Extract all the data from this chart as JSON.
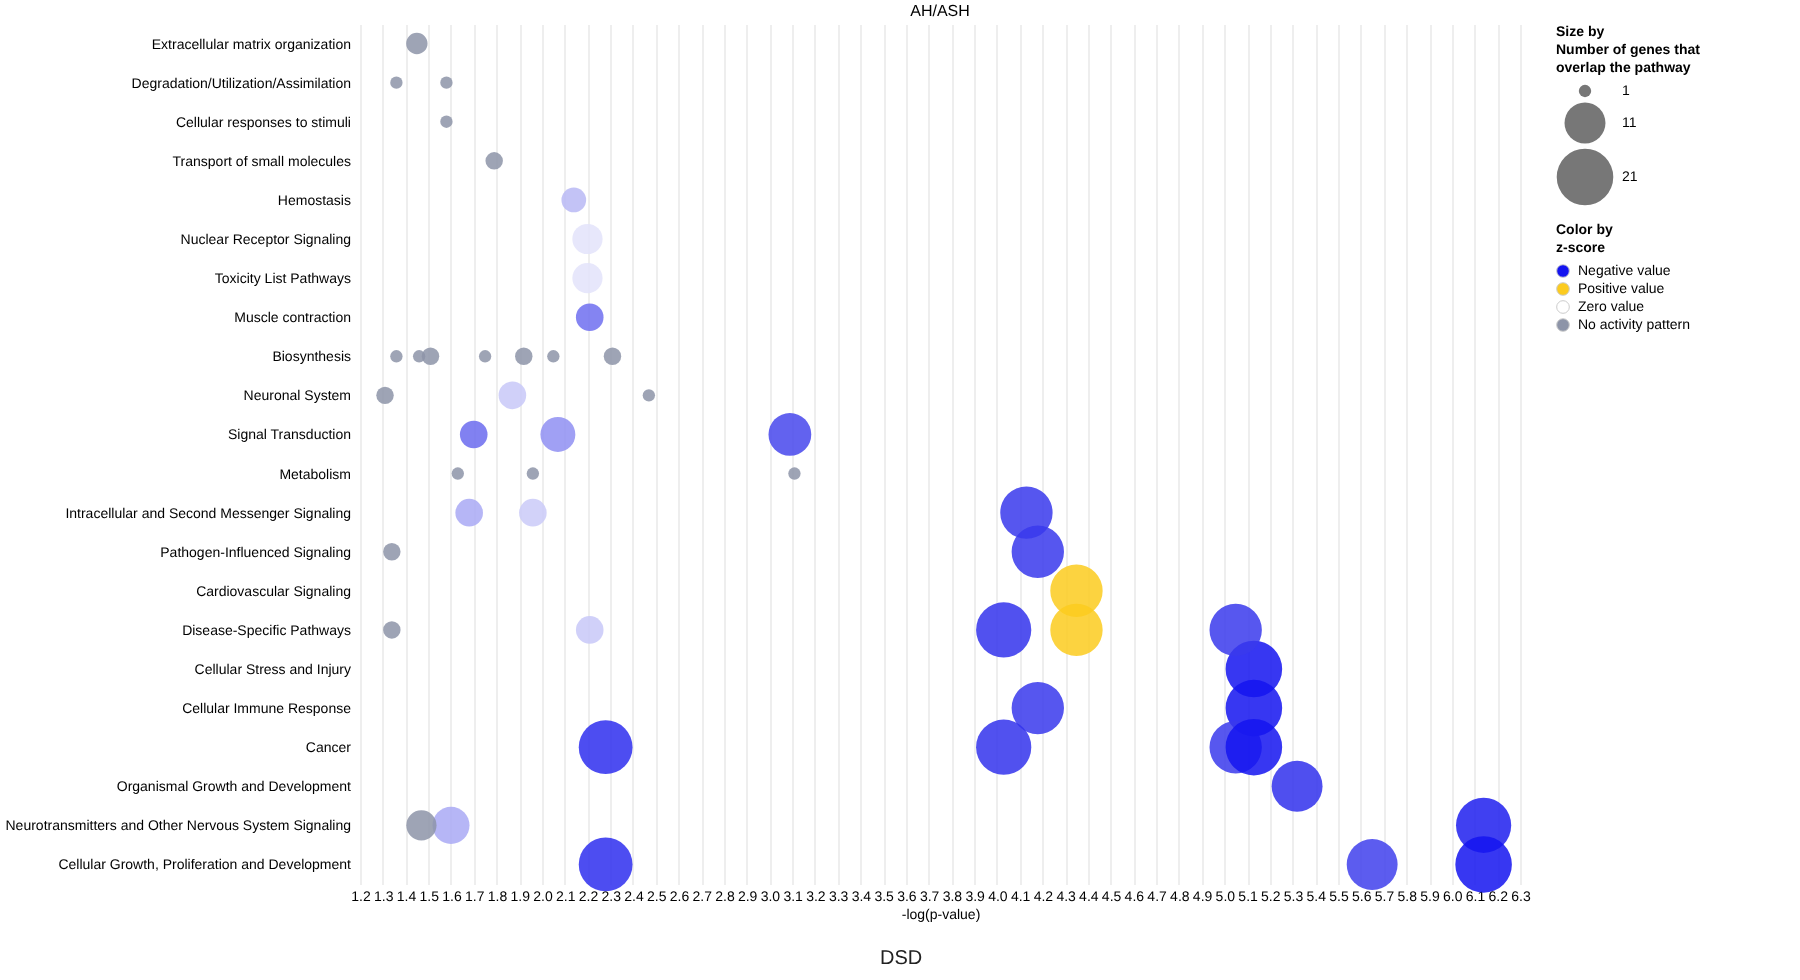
{
  "chart_data": {
    "type": "bubble",
    "title": "AH/ASH",
    "xlabel": "-log(p-value)",
    "legend_title": "Color by\nz-score",
    "legend": "top right",
    "grid": "x",
    "orientation": "horizontal",
    "annotations": [
      "DSD",
      "Size by\nNumber of genes that\n overlap the pathway"
    ],
    "size_legend": [
      1,
      11,
      21
    ],
    "categories": [
      "Extracellular matrix organization",
      "Degradation/Utilization/Assimilation",
      "Cellular responses to stimuli",
      "Transport of small molecules",
      "Hemostasis",
      "Nuclear Receptor Signaling",
      "Toxicity List Pathways",
      "Muscle contraction",
      "Biosynthesis",
      "Neuronal System",
      "Signal Transduction",
      "Metabolism",
      "Intracellular and Second Messenger Signaling",
      "Pathogen-Influenced Signaling",
      "Cardiovascular Signaling",
      "Disease-Specific Pathways",
      "Cellular Stress and Injury",
      "Cellular Immune Response",
      "Cancer",
      "Organismal Growth and Development",
      "Neurotransmitters and Other Nervous System Signaling",
      "Cellular Growth, Proliferation and Development"
    ],
    "xlim": [
      1.2,
      6.3
    ],
    "xticks": [
      1.2,
      1.3,
      1.4,
      1.5,
      1.6,
      1.7,
      1.8,
      1.9,
      {
        "value": 2,
        "label": "2.0"
      },
      2.1,
      2.2,
      2.3,
      2.4,
      2.5,
      2.6,
      2.7,
      2.8,
      2.9,
      {
        "value": 3,
        "label": "3.0"
      },
      3.1,
      3.2,
      3.3,
      3.4,
      3.5,
      3.6,
      3.7,
      3.8,
      3.9,
      {
        "value": 4,
        "label": "4.0"
      },
      4.1,
      4.2,
      4.3,
      4.4,
      4.5,
      4.6,
      4.7,
      4.8,
      4.9,
      {
        "value": 5,
        "label": "5.0"
      },
      5.1,
      5.2,
      5.3,
      5.4,
      5.5,
      5.6,
      5.7,
      5.8,
      5.9,
      {
        "value": 6,
        "label": "6.0"
      },
      6.1,
      6.2,
      6.3
    ],
    "series": [
      {
        "name": "Negative value",
        "color": "#1414f0",
        "values": [
          null,
          null,
          null,
          null,
          2.14,
          2.2,
          2.2,
          2.21,
          null,
          1.87,
          1.7,
          null,
          1.68,
          4.18,
          null,
          2.21,
          5.13,
          4.18,
          2.28,
          5.32,
          1.6,
          2.28
        ],
        "sizes": [
          null,
          null,
          null,
          null,
          4,
          6,
          6,
          5,
          null,
          5,
          5,
          null,
          5,
          18,
          null,
          5,
          21,
          18,
          19,
          17,
          9,
          19
        ],
        "colors": [
          null,
          null,
          null,
          null,
          "#b9b9f5",
          "#e3e3fa",
          "#e3e3fa",
          "#6f6ff0",
          null,
          "#c8c8f8",
          "#6b6bee",
          null,
          "#a9a9f5",
          "#3838ec",
          null,
          "#c8c8f8",
          "#1414f0",
          "#3838ec",
          "#2e2eee",
          "#3030ec",
          "#a9a9f5",
          "#2e2eee"
        ]
      },
      {
        "values": [
          null,
          null,
          null,
          null,
          null,
          null,
          null,
          null,
          null,
          null,
          2.07,
          null,
          1.96,
          null,
          null,
          4.03,
          null,
          5.13,
          4.03,
          null,
          6.14,
          5.65
        ],
        "sizes": [
          null,
          null,
          null,
          null,
          null,
          null,
          null,
          null,
          null,
          null,
          8,
          null,
          5,
          null,
          null,
          20,
          null,
          21,
          20,
          null,
          20,
          17
        ],
        "colors": [
          null,
          null,
          null,
          null,
          null,
          null,
          null,
          null,
          null,
          null,
          "#8f8ff2",
          null,
          "#cacaf8",
          null,
          null,
          "#3232ec",
          null,
          "#1414f0",
          "#3232ec",
          null,
          "#1e1eee",
          "#4040ec"
        ]
      },
      {
        "values": [
          null,
          null,
          null,
          null,
          null,
          null,
          null,
          null,
          null,
          null,
          3.09,
          null,
          4.13,
          null,
          null,
          5.05,
          null,
          null,
          5.05,
          null,
          null,
          6.14
        ],
        "sizes": [
          null,
          null,
          null,
          null,
          null,
          null,
          null,
          null,
          null,
          null,
          12,
          null,
          18,
          null,
          null,
          18,
          null,
          null,
          18,
          null,
          null,
          21
        ],
        "colors": [
          null,
          null,
          null,
          null,
          null,
          null,
          null,
          null,
          null,
          null,
          "#4646ec",
          null,
          "#3838ec",
          null,
          null,
          "#3a3aec",
          null,
          null,
          "#3a3aec",
          null,
          null,
          "#1414f0"
        ]
      },
      {
        "values": [
          null,
          null,
          null,
          null,
          null,
          null,
          null,
          null,
          null,
          null,
          null,
          null,
          null,
          null,
          null,
          null,
          null,
          null,
          5.13,
          null,
          null,
          null
        ],
        "sizes": [
          null,
          null,
          null,
          null,
          null,
          null,
          null,
          null,
          null,
          null,
          null,
          null,
          null,
          null,
          null,
          null,
          null,
          null,
          21,
          null,
          null,
          null
        ],
        "colors": [
          null,
          null,
          null,
          null,
          null,
          null,
          null,
          null,
          null,
          null,
          null,
          null,
          null,
          null,
          null,
          null,
          null,
          null,
          "#1414f0",
          null,
          null,
          null
        ]
      },
      {
        "name": "Positive value",
        "color": "#fccb1f",
        "values": [
          null,
          null,
          null,
          null,
          null,
          null,
          null,
          null,
          null,
          null,
          null,
          null,
          null,
          null,
          4.35,
          4.35,
          null,
          null,
          null,
          null,
          null,
          null
        ],
        "sizes": [
          null,
          null,
          null,
          null,
          null,
          null,
          null,
          null,
          null,
          null,
          null,
          null,
          null,
          null,
          18,
          18,
          null,
          null,
          null,
          null,
          null,
          null
        ]
      },
      {
        "name": "Zero value",
        "color": "#ffffff",
        "values": [
          null,
          null,
          null,
          null,
          null,
          null,
          null,
          null,
          null,
          null,
          null,
          null,
          null,
          null,
          null,
          null,
          null,
          null,
          null,
          null,
          null,
          null
        ]
      },
      {
        "name": "No activity pattern",
        "color": "#8d94a8",
        "values": [
          1.45,
          1.36,
          1.58,
          1.79,
          null,
          null,
          null,
          null,
          1.36,
          1.31,
          null,
          1.63,
          null,
          1.34,
          null,
          1.34,
          null,
          null,
          null,
          null,
          1.47,
          null
        ],
        "sizes": [
          3,
          1,
          1,
          2,
          null,
          null,
          null,
          null,
          1,
          2,
          null,
          1,
          null,
          2,
          null,
          2,
          null,
          null,
          null,
          null,
          6,
          null
        ]
      },
      {
        "color": "#8d94a8",
        "values": [
          null,
          1.58,
          null,
          null,
          null,
          null,
          null,
          null,
          1.46,
          2.47,
          null,
          1.96,
          null,
          null,
          null,
          null,
          null,
          null,
          null,
          null,
          null,
          null
        ],
        "sizes": [
          null,
          1,
          null,
          null,
          null,
          null,
          null,
          null,
          1,
          1,
          null,
          1,
          null,
          null,
          null,
          null,
          null,
          null,
          null,
          null,
          null,
          null
        ]
      },
      {
        "color": "#8d94a8",
        "values": [
          null,
          null,
          null,
          null,
          null,
          null,
          null,
          null,
          1.51,
          null,
          null,
          3.11,
          null,
          null,
          null,
          null,
          null,
          null,
          null,
          null,
          null,
          null
        ],
        "sizes": [
          null,
          null,
          null,
          null,
          null,
          null,
          null,
          null,
          2,
          null,
          null,
          1,
          null,
          null,
          null,
          null,
          null,
          null,
          null,
          null,
          null,
          null
        ]
      },
      {
        "color": "#8d94a8",
        "values": [
          null,
          null,
          null,
          null,
          null,
          null,
          null,
          null,
          1.75,
          null,
          null,
          null,
          null,
          null,
          null,
          null,
          null,
          null,
          null,
          null,
          null,
          null
        ],
        "sizes": [
          null,
          null,
          null,
          null,
          null,
          null,
          null,
          null,
          1,
          null,
          null,
          null,
          null,
          null,
          null,
          null,
          null,
          null,
          null,
          null,
          null,
          null
        ]
      },
      {
        "color": "#8d94a8",
        "values": [
          null,
          null,
          null,
          null,
          null,
          null,
          null,
          null,
          1.92,
          null,
          null,
          null,
          null,
          null,
          null,
          null,
          null,
          null,
          null,
          null,
          null,
          null
        ],
        "sizes": [
          null,
          null,
          null,
          null,
          null,
          null,
          null,
          null,
          2,
          null,
          null,
          null,
          null,
          null,
          null,
          null,
          null,
          null,
          null,
          null,
          null,
          null
        ]
      },
      {
        "color": "#8d94a8",
        "values": [
          null,
          null,
          null,
          null,
          null,
          null,
          null,
          null,
          2.05,
          null,
          null,
          null,
          null,
          null,
          null,
          null,
          null,
          null,
          null,
          null,
          null,
          null
        ],
        "sizes": [
          null,
          null,
          null,
          null,
          null,
          null,
          null,
          null,
          1,
          null,
          null,
          null,
          null,
          null,
          null,
          null,
          null,
          null,
          null,
          null,
          null,
          null
        ]
      },
      {
        "color": "#8d94a8",
        "values": [
          null,
          null,
          null,
          null,
          null,
          null,
          null,
          null,
          2.31,
          null,
          null,
          null,
          null,
          null,
          null,
          null,
          null,
          null,
          null,
          null,
          null,
          null
        ],
        "sizes": [
          null,
          null,
          null,
          null,
          null,
          null,
          null,
          null,
          2,
          null,
          null,
          null,
          null,
          null,
          null,
          null,
          null,
          null,
          null,
          null,
          null,
          null
        ]
      }
    ]
  }
}
